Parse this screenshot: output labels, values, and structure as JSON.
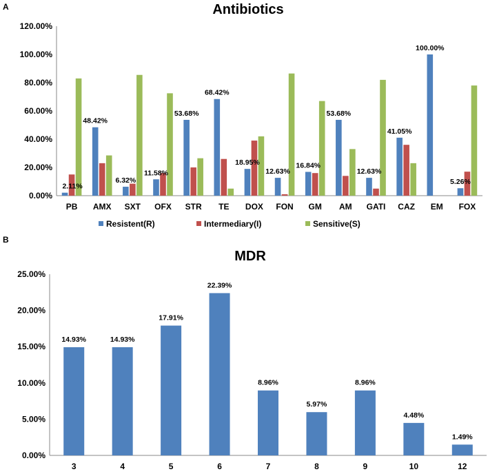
{
  "chart_data": [
    {
      "type": "bar",
      "panel": "A",
      "title": "Antibiotics",
      "categories": [
        "PB",
        "AMX",
        "SXT",
        "OFX",
        "STR",
        "TE",
        "DOX",
        "FON",
        "GM",
        "AM",
        "GATI",
        "CAZ",
        "EM",
        "FOX"
      ],
      "series": [
        {
          "name": "Resistent(R)",
          "color": "#4f81bd",
          "values": [
            2.11,
            48.42,
            6.32,
            11.58,
            53.68,
            68.42,
            18.95,
            12.63,
            16.84,
            53.68,
            12.63,
            41.05,
            100.0,
            5.26
          ],
          "labels": [
            "2.11%",
            "48.42%",
            "6.32%",
            "11.58%",
            "53.68%",
            "68.42%",
            "18.95%",
            "12.63%",
            "16.84%",
            "53.68%",
            "12.63%",
            "41.05%",
            "100.00%",
            "5.26%"
          ]
        },
        {
          "name": "Intermediary(I)",
          "color": "#c0504d",
          "values": [
            15,
            23,
            8.5,
            16,
            20,
            26,
            39,
            1,
            16,
            14,
            5,
            36,
            0,
            17
          ]
        },
        {
          "name": "Sensitive(S)",
          "color": "#9bbb59",
          "values": [
            83,
            28.5,
            85.5,
            72.5,
            26.5,
            5,
            42,
            86.5,
            67,
            33,
            82,
            23,
            0,
            78
          ]
        }
      ],
      "yticks": [
        "0.00%",
        "20.00%",
        "40.00%",
        "60.00%",
        "80.00%",
        "100.00%",
        "120.00%"
      ],
      "ylim": [
        0,
        120
      ],
      "legend": "bottom"
    },
    {
      "type": "bar",
      "panel": "B",
      "title": "MDR",
      "categories": [
        "3",
        "4",
        "5",
        "6",
        "7",
        "8",
        "9",
        "10",
        "12"
      ],
      "series": [
        {
          "name": "MDR",
          "color": "#4f81bd",
          "values": [
            14.93,
            14.93,
            17.91,
            22.39,
            8.96,
            5.97,
            8.96,
            4.48,
            1.49
          ],
          "labels": [
            "14.93%",
            "14.93%",
            "17.91%",
            "22.39%",
            "8.96%",
            "5.97%",
            "8.96%",
            "4.48%",
            "1.49%"
          ]
        }
      ],
      "yticks": [
        "0.00%",
        "5.00%",
        "10.00%",
        "15.00%",
        "20.00%",
        "25.00%"
      ],
      "ylim": [
        0,
        25
      ]
    }
  ]
}
